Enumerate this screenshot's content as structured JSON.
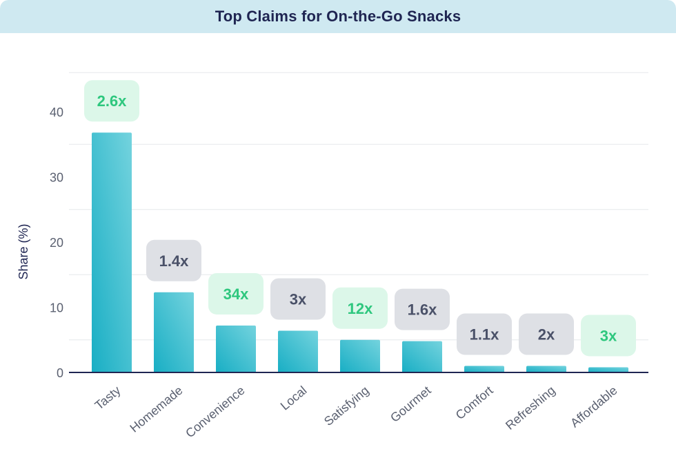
{
  "chart_data": {
    "type": "bar",
    "title": "Top Claims for On-the-Go Snacks",
    "xlabel": "",
    "ylabel": "Share (%)",
    "ylim": [
      0,
      46
    ],
    "yticks": [
      0,
      10,
      20,
      30,
      40
    ],
    "grid": true,
    "categories": [
      "Tasty",
      "Homemade",
      "Convenience",
      "Local",
      "Satisfying",
      "Gourmet",
      "Comfort",
      "Refreshing",
      "Affordable"
    ],
    "values": [
      36.8,
      12.3,
      7.2,
      6.4,
      5.0,
      4.8,
      1.0,
      1.0,
      0.8
    ],
    "annotations": [
      "2.6x",
      "1.4x",
      "34x",
      "3x",
      "12x",
      "1.6x",
      "1.1x",
      "2x",
      "3x"
    ],
    "annotation_highlight": [
      true,
      false,
      true,
      false,
      true,
      false,
      false,
      false,
      true
    ],
    "colors": {
      "bar_top": "#74d3de",
      "bar_bottom": "#18aec4",
      "badge_green_bg": "#dcf7e9",
      "badge_green_text": "#2ec77e",
      "badge_gray_bg": "#dee0e5",
      "badge_gray_text": "#4a5168",
      "axis": "#1f2552",
      "tick_text": "#5a6070",
      "grid": "#e6e8ec"
    }
  }
}
